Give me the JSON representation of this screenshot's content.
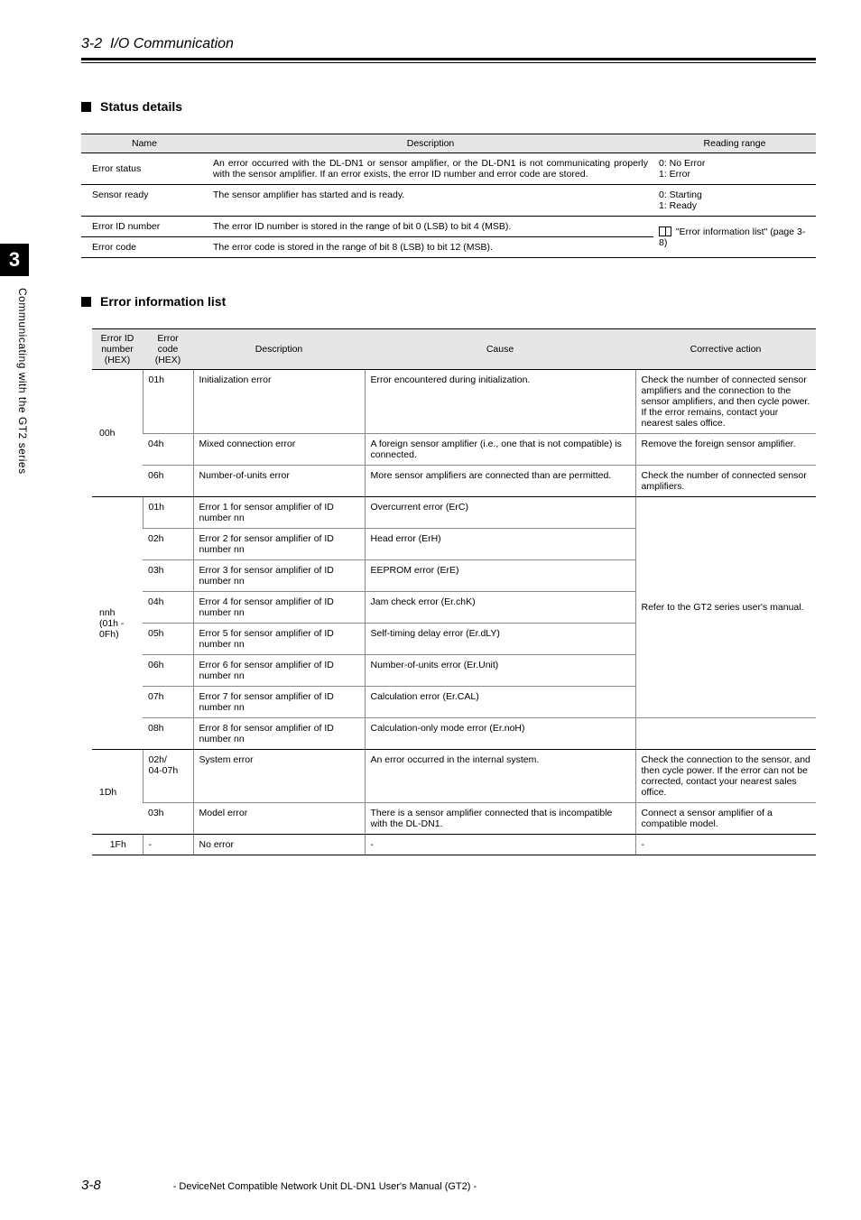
{
  "header": {
    "section_number": "3-2",
    "section_title": "I/O Communication"
  },
  "side": {
    "chapter_num": "3",
    "chapter_text": "Communicating with the GT2 series"
  },
  "headings": {
    "status_details": "Status details",
    "error_list": "Error information list"
  },
  "status_table": {
    "headers": {
      "name": "Name",
      "desc": "Description",
      "range": "Reading range"
    },
    "rows": [
      {
        "name": "Error status",
        "desc": "An error occurred with the DL-DN1 or sensor amplifier, or the DL-DN1 is not communicating properly with the sensor amplifier. If an error exists, the error ID number and error code are stored.",
        "range": "0: No Error\n1: Error"
      },
      {
        "name": "Sensor ready",
        "desc": "The sensor amplifier has started and is ready.",
        "range": "0: Starting\n1: Ready"
      },
      {
        "name": "Error ID number",
        "desc": "The error ID number is stored in the range of bit 0 (LSB) to bit 4 (MSB)."
      },
      {
        "name": "Error code",
        "desc": "The error code is stored in the range of bit 8 (LSB) to bit 12 (MSB)."
      }
    ],
    "ref_text": "\"Error information list\" (page 3-8)"
  },
  "error_table": {
    "headers": {
      "id": "Error ID number (HEX)",
      "code": "Error code (HEX)",
      "desc": "Description",
      "cause": "Cause",
      "action": "Corrective action"
    },
    "group_00h": {
      "id": "00h",
      "rows": [
        {
          "code": "01h",
          "desc": "Initialization error",
          "cause": "Error encountered during initialization.",
          "action": "Check the number of connected sensor amplifiers and the connection to the sensor amplifiers, and then cycle power. If the error remains, contact your nearest sales office."
        },
        {
          "code": "04h",
          "desc": "Mixed connection error",
          "cause": "A foreign sensor amplifier (i.e., one that is not compatible) is connected.",
          "action": "Remove the foreign sensor amplifier."
        },
        {
          "code": "06h",
          "desc": "Number-of-units error",
          "cause": "More sensor amplifiers are connected than are permitted.",
          "action": "Check the number of connected sensor amplifiers."
        }
      ]
    },
    "group_nnh": {
      "id": "nnh\n(01h - 0Fh)",
      "shared_action": "Refer to the GT2 series user's manual.",
      "rows": [
        {
          "code": "01h",
          "desc": "Error 1 for sensor amplifier of ID number nn",
          "cause": "Overcurrent error (ErC)"
        },
        {
          "code": "02h",
          "desc": "Error 2 for sensor amplifier of ID number nn",
          "cause": "Head error (ErH)"
        },
        {
          "code": "03h",
          "desc": "Error 3 for sensor amplifier of ID number nn",
          "cause": "EEPROM error (ErE)"
        },
        {
          "code": "04h",
          "desc": "Error 4 for sensor amplifier of ID number nn",
          "cause": "Jam check error (Er.chK)"
        },
        {
          "code": "05h",
          "desc": "Error 5 for sensor amplifier of ID number nn",
          "cause": "Self-timing delay error (Er.dLY)"
        },
        {
          "code": "06h",
          "desc": "Error 6 for sensor amplifier of ID number nn",
          "cause": "Number-of-units error (Er.Unit)"
        },
        {
          "code": "07h",
          "desc": "Error 7 for sensor amplifier of ID number nn",
          "cause": "Calculation error (Er.CAL)"
        },
        {
          "code": "08h",
          "desc": "Error 8 for sensor amplifier of ID number nn",
          "cause": "Calculation-only mode error (Er.noH)"
        }
      ]
    },
    "group_1dh": {
      "id": "1Dh",
      "rows": [
        {
          "code": "02h/\n04-07h",
          "desc": "System error",
          "cause": "An error occurred in the internal system.",
          "action": "Check the connection to the sensor, and then cycle power. If the error can not be corrected, contact your nearest sales office."
        },
        {
          "code": "03h",
          "desc": "Model error",
          "cause": "There is a sensor amplifier connected that is incompatible with the DL-DN1.",
          "action": "Connect a sensor amplifier of a compatible model."
        }
      ]
    },
    "group_1fh": {
      "id": "1Fh",
      "rows": [
        {
          "code": "-",
          "desc": "No error",
          "cause": "-",
          "action": "-"
        }
      ]
    }
  },
  "footer": {
    "page": "3-8",
    "text": "- DeviceNet Compatible Network Unit DL-DN1 User's Manual (GT2) -"
  }
}
